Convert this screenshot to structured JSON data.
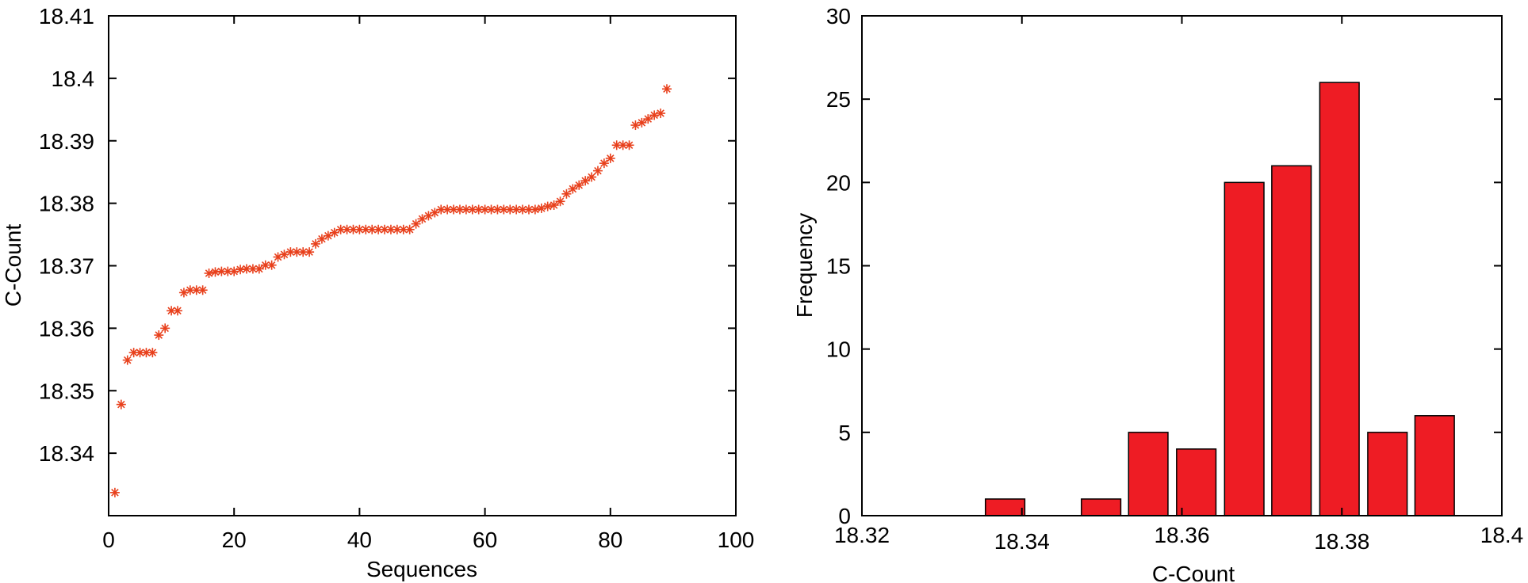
{
  "chart_data": [
    {
      "type": "scatter",
      "xlabel": "Sequences",
      "ylabel": "C-Count",
      "xlim": [
        0,
        100
      ],
      "ylim": [
        18.33,
        18.41
      ],
      "x_ticks": [
        "0",
        "20",
        "40",
        "60",
        "80",
        "100"
      ],
      "y_ticks": [
        "18.34",
        "18.35",
        "18.36",
        "18.37",
        "18.38",
        "18.39",
        "18.4",
        "18.41"
      ],
      "marker": "asterisk",
      "marker_color": "#e8401c",
      "grid": false,
      "x": [
        1,
        2,
        3,
        4,
        5,
        6,
        7,
        8,
        9,
        10,
        11,
        12,
        13,
        14,
        15,
        16,
        17,
        18,
        19,
        20,
        21,
        22,
        23,
        24,
        25,
        26,
        27,
        28,
        29,
        30,
        31,
        32,
        33,
        34,
        35,
        36,
        37,
        38,
        39,
        40,
        41,
        42,
        43,
        44,
        45,
        46,
        47,
        48,
        49,
        50,
        51,
        52,
        53,
        54,
        55,
        56,
        57,
        58,
        59,
        60,
        61,
        62,
        63,
        64,
        65,
        66,
        67,
        68,
        69,
        70,
        71,
        72,
        73,
        74,
        75,
        76,
        77,
        78,
        79,
        80,
        81,
        82,
        83,
        84,
        85,
        86,
        87,
        88,
        89
      ],
      "y": [
        18.3337,
        18.3478,
        18.3549,
        18.3561,
        18.3561,
        18.3561,
        18.3561,
        18.3589,
        18.36,
        18.3628,
        18.3628,
        18.3657,
        18.3661,
        18.3661,
        18.3661,
        18.3688,
        18.369,
        18.3691,
        18.3691,
        18.3691,
        18.3694,
        18.3695,
        18.3695,
        18.3695,
        18.3701,
        18.3701,
        18.3714,
        18.3718,
        18.3722,
        18.3722,
        18.3722,
        18.3722,
        18.3735,
        18.3743,
        18.3748,
        18.3753,
        18.3758,
        18.3758,
        18.3758,
        18.3758,
        18.3758,
        18.3758,
        18.3758,
        18.3758,
        18.3758,
        18.3758,
        18.3758,
        18.3758,
        18.3767,
        18.3775,
        18.378,
        18.3785,
        18.379,
        18.379,
        18.379,
        18.379,
        18.379,
        18.379,
        18.379,
        18.379,
        18.379,
        18.379,
        18.379,
        18.379,
        18.379,
        18.379,
        18.379,
        18.379,
        18.3792,
        18.3795,
        18.3797,
        18.3803,
        18.3815,
        18.3823,
        18.3829,
        18.3836,
        18.3842,
        18.3852,
        18.3864,
        18.3872,
        18.3893,
        18.3893,
        18.3893,
        18.3925,
        18.3929,
        18.3935,
        18.3941,
        18.3944,
        18.3983
      ]
    },
    {
      "type": "bar",
      "xlabel": "C-Count",
      "ylabel": "Frequency",
      "xlim": [
        18.32,
        18.4
      ],
      "ylim": [
        0,
        30
      ],
      "x_ticks": [
        "18.32",
        "18.34",
        "18.36",
        "18.38",
        "18.4"
      ],
      "y_ticks": [
        "0",
        "5",
        "10",
        "15",
        "20",
        "25",
        "30"
      ],
      "bar_color": "#ee1c24",
      "grid": false,
      "x": [
        18.3239,
        18.3298,
        18.3379,
        18.3418,
        18.3499,
        18.3558,
        18.3618,
        18.3678,
        18.3737,
        18.3797,
        18.3857,
        18.3916
      ],
      "values": [
        0,
        0,
        1,
        0,
        1,
        5,
        4,
        20,
        21,
        26,
        5,
        6
      ]
    }
  ]
}
